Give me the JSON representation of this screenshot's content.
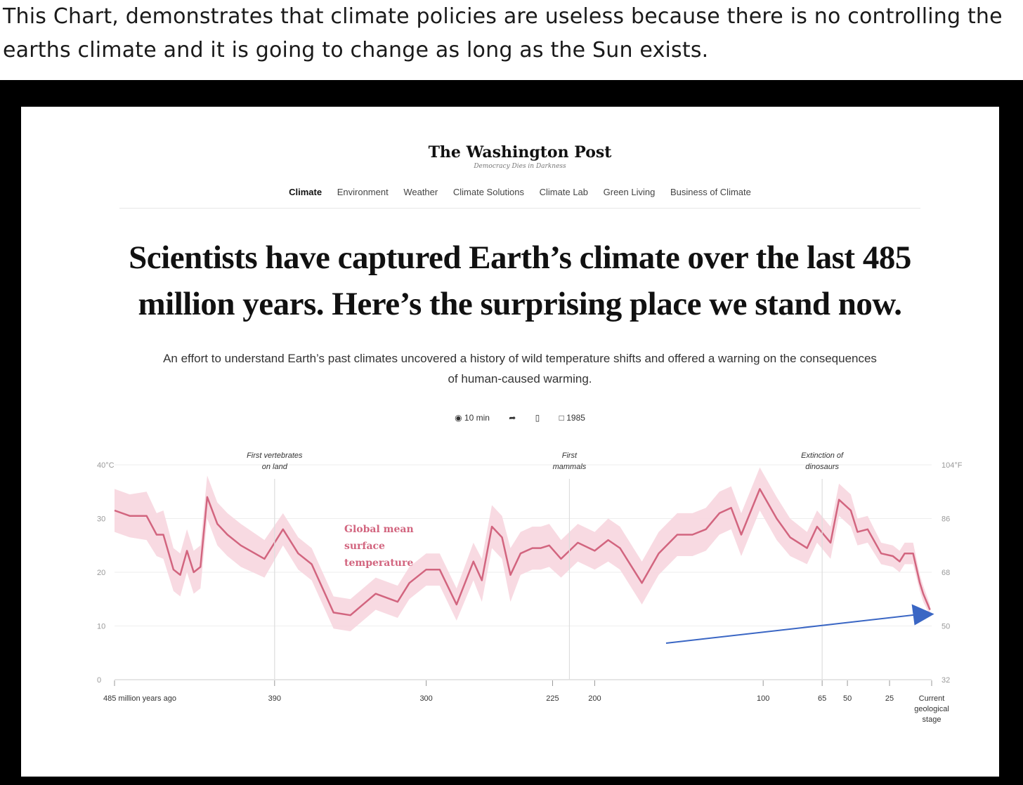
{
  "caption": "This Chart, demonstrates that climate policies are useless because there is no controlling the earths climate and it is going to change as long as the Sun exists.",
  "article": {
    "masthead": "The Washington Post",
    "tagline": "Democracy Dies in Darkness",
    "nav": [
      "Climate",
      "Environment",
      "Weather",
      "Climate Solutions",
      "Climate Lab",
      "Green Living",
      "Business of Climate"
    ],
    "headline": "Scientists have captured Earth’s climate over the last 485 million years. Here’s the surprising place we stand now.",
    "dek": "An effort to understand Earth’s past climates uncovered a history of wild temperature shifts and offered a warning on the consequences of human-caused warming.",
    "share": {
      "listen": "10 min",
      "comments": "1985"
    }
  },
  "chart_data": {
    "type": "area",
    "title": "",
    "series_label": "Global mean surface temperature",
    "x_direction": "reversed",
    "x_label_unit": "million years ago",
    "xlim": [
      485,
      0
    ],
    "ylim": [
      0,
      40
    ],
    "y_ticks_c": [
      "40°C",
      "30",
      "20",
      "10",
      "0"
    ],
    "y_ticks_f": [
      "104°F",
      "86",
      "68",
      "50",
      "32"
    ],
    "x_ticks": [
      {
        "value": 485,
        "label": "485 million years ago"
      },
      {
        "value": 390,
        "label": "390"
      },
      {
        "value": 300,
        "label": "300"
      },
      {
        "value": 225,
        "label": "225"
      },
      {
        "value": 200,
        "label": "200"
      },
      {
        "value": 100,
        "label": "100"
      },
      {
        "value": 65,
        "label": "65"
      },
      {
        "value": 50,
        "label": "50"
      },
      {
        "value": 25,
        "label": "25"
      },
      {
        "value": 0,
        "label": "Current geological stage"
      }
    ],
    "annotations": [
      {
        "x": 390,
        "text": "First vertebrates on land"
      },
      {
        "x": 215,
        "text": "First mammals"
      },
      {
        "x": 65,
        "text": "Extinction of dinosaurs"
      }
    ],
    "line_color": "#d2657f",
    "band_color": "#f7d4dd",
    "arrow_color": "#3a66c4",
    "grid": true,
    "x": [
      485,
      476,
      466,
      460,
      456,
      450,
      446,
      442,
      438,
      434,
      430,
      424,
      418,
      410,
      396,
      385,
      376,
      368,
      355,
      345,
      330,
      317,
      310,
      300,
      292,
      282,
      272,
      267,
      261,
      255,
      250,
      244,
      237,
      232,
      227,
      220,
      210,
      200,
      192,
      185,
      172,
      162,
      151,
      142,
      134,
      126,
      119,
      113,
      102,
      92,
      84,
      74,
      68,
      60,
      55,
      48,
      44,
      38,
      30,
      23,
      19,
      16,
      11,
      7,
      5,
      1
    ],
    "y": [
      31.5,
      30.5,
      30.5,
      27,
      27,
      20.5,
      19.5,
      24,
      20,
      21,
      34,
      29,
      27,
      25,
      22.5,
      28,
      23.5,
      21.5,
      12.5,
      12,
      16,
      14.5,
      18,
      20.5,
      20.5,
      14,
      22,
      18.5,
      28.5,
      26.5,
      19.5,
      23.5,
      24.5,
      24.5,
      25,
      22.5,
      25.5,
      24,
      26,
      24.5,
      18,
      23.5,
      27,
      27,
      28,
      31,
      32,
      27,
      35.5,
      30,
      26.5,
      24.5,
      28.5,
      25.5,
      33.5,
      31.5,
      27.5,
      28,
      23.5,
      23,
      22,
      23.5,
      23.5,
      18,
      16,
      13
    ],
    "band_width": [
      4,
      4,
      4.5,
      4,
      4.5,
      4,
      4,
      4,
      4,
      4,
      4,
      4,
      4,
      4,
      3.5,
      3,
      3,
      3,
      3,
      3,
      3,
      3,
      3,
      3,
      3,
      3,
      3.5,
      4,
      4,
      4,
      5,
      4,
      4,
      4,
      4,
      3.5,
      3.5,
      3.5,
      4,
      4,
      4,
      4,
      4,
      4,
      4,
      4,
      4,
      4,
      4,
      4,
      3.5,
      3,
      3,
      3,
      3,
      3,
      2.5,
      2.5,
      2,
      2,
      2,
      2,
      2,
      1.5,
      1.5,
      1
    ]
  }
}
